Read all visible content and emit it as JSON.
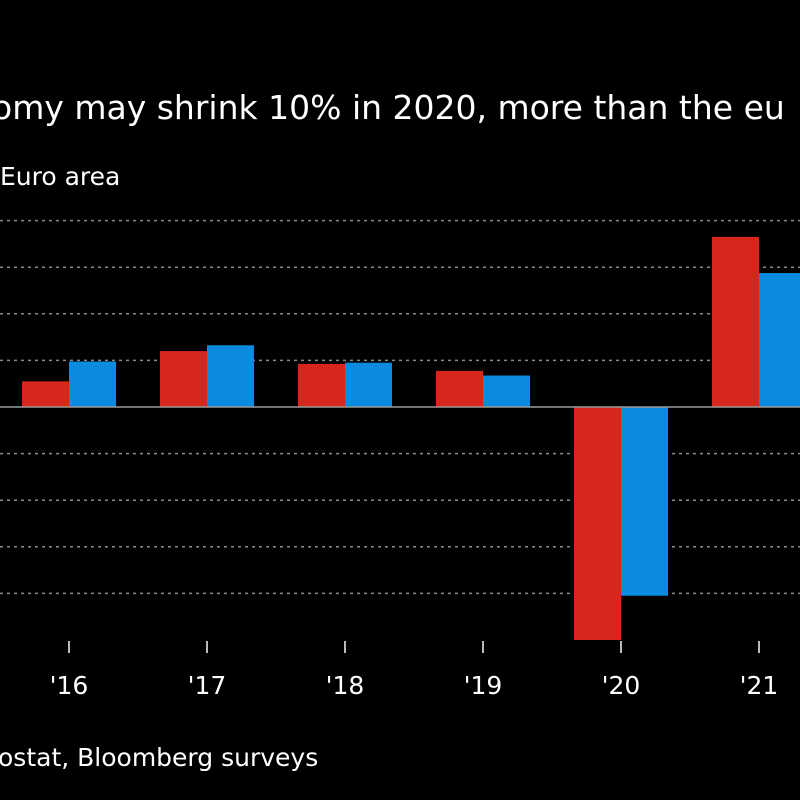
{
  "chart_data": {
    "type": "bar",
    "title": "omy may shrink 10% in 2020, more than the eu",
    "categories": [
      "'16",
      "'17",
      "'18",
      "'19",
      "'20",
      "'21"
    ],
    "series": [
      {
        "name": "",
        "color": "#d9261c",
        "values": [
          1.1,
          2.4,
          1.85,
          1.55,
          -10.0,
          7.3
        ]
      },
      {
        "name": "Euro area",
        "color": "#0b8be0",
        "values": [
          1.95,
          2.65,
          1.9,
          1.35,
          -8.1,
          5.75
        ]
      }
    ],
    "ylim": [
      -10.5,
      8.5
    ],
    "grid": true,
    "legend_placement": "top-left",
    "source_text": "ostat, Bloomberg surveys"
  }
}
